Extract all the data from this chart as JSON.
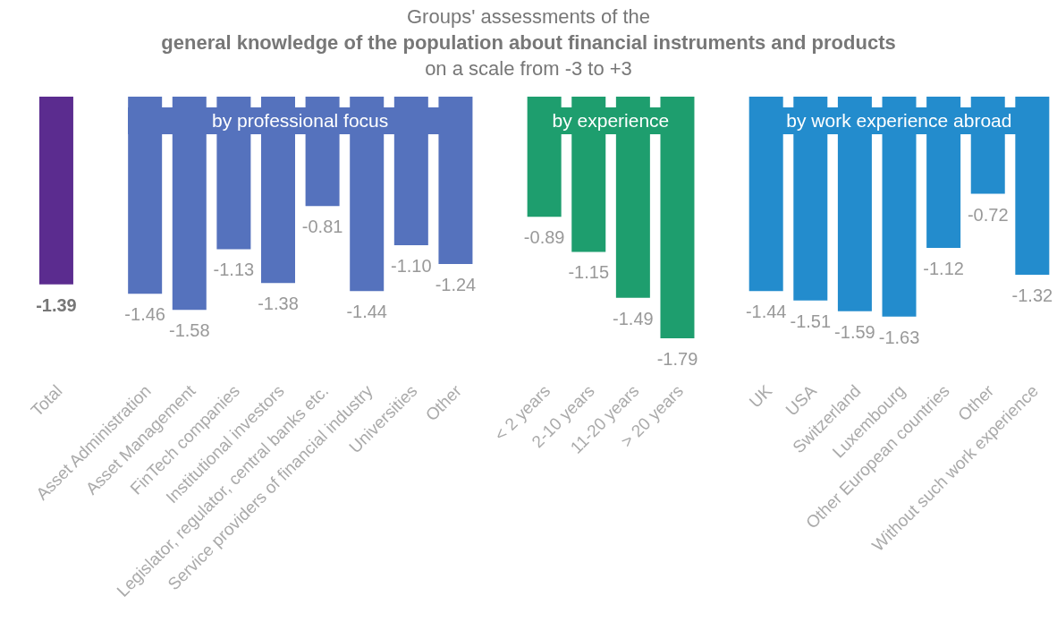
{
  "chart_data": {
    "type": "bar",
    "title": "Groups' assessments of the\ngeneral knowledge of the population about financial instruments and products",
    "subtitle": "on a scale from -3 to +3",
    "categories": [
      "Total",
      null,
      "Asset Administration",
      "Asset Management",
      "FinTech companies",
      "Institutional investors",
      "Legislator, regulator, central banks etc.",
      "Service providers of financial industry",
      "Universities",
      "Other",
      null,
      "< 2 years",
      "2-10 years",
      "11-20 years",
      "> 20 years",
      null,
      "UK",
      "USA",
      "Switzerland",
      "Luxembourg",
      "Other European countries",
      "Other",
      "Without such work experience"
    ],
    "values": [
      -1.39,
      null,
      -1.46,
      -1.58,
      -1.13,
      -1.38,
      -0.81,
      -1.44,
      -1.1,
      -1.24,
      null,
      -0.89,
      -1.15,
      -1.49,
      -1.79,
      null,
      -1.44,
      -1.51,
      -1.59,
      -1.63,
      -1.12,
      -0.72,
      -1.32
    ],
    "value_labels": [
      "-1.39",
      null,
      "-1.46",
      "-1.58",
      "-1.13",
      "-1.38",
      "-0.81",
      "-1.44",
      "-1.10",
      "-1.24",
      null,
      "-0.89",
      "-1.15",
      "-1.49",
      "-1.79",
      null,
      "-1.44",
      "-1.51",
      "-1.59",
      "-1.63",
      "-1.12",
      "-0.72",
      "-1.32"
    ],
    "colors": [
      "#5b2c8f",
      null,
      "#5572bd",
      "#5572bd",
      "#5572bd",
      "#5572bd",
      "#5572bd",
      "#5572bd",
      "#5572bd",
      "#5572bd",
      null,
      "#1e9e6e",
      "#1e9e6e",
      "#1e9e6e",
      "#1e9e6e",
      null,
      "#238ccd",
      "#238ccd",
      "#238ccd",
      "#238ccd",
      "#238ccd",
      "#238ccd",
      "#238ccd"
    ],
    "annotations": [
      "by professional focus",
      "by experience",
      "by work experience abroad"
    ]
  }
}
